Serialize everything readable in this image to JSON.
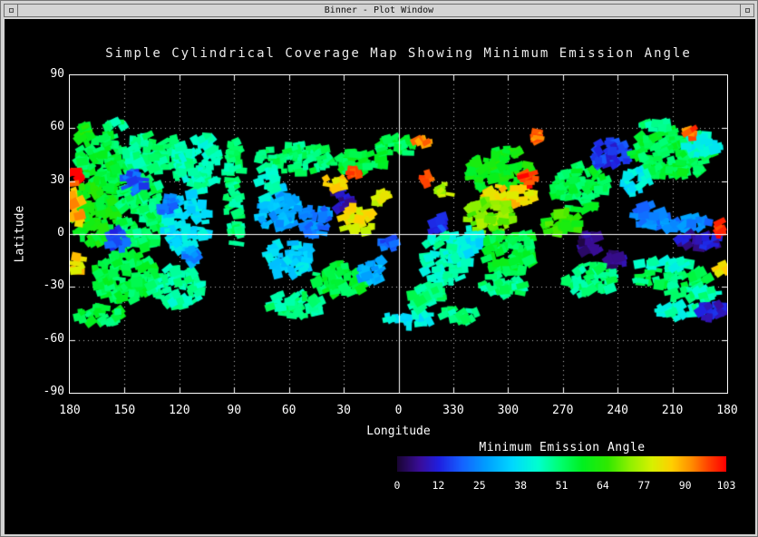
{
  "window": {
    "title": "Binner - Plot Window"
  },
  "plot": {
    "title": "Simple Cylindrical Coverage Map Showing Minimum Emission Angle",
    "xlabel": "Longitude",
    "ylabel": "Latitude",
    "x_ticks": [
      {
        "label": "180",
        "deg": 0
      },
      {
        "label": "150",
        "deg": 30
      },
      {
        "label": "120",
        "deg": 60
      },
      {
        "label": "90",
        "deg": 90
      },
      {
        "label": "60",
        "deg": 120
      },
      {
        "label": "30",
        "deg": 150
      },
      {
        "label": "0",
        "deg": 180
      },
      {
        "label": "330",
        "deg": 210
      },
      {
        "label": "300",
        "deg": 240
      },
      {
        "label": "270",
        "deg": 270
      },
      {
        "label": "240",
        "deg": 300
      },
      {
        "label": "210",
        "deg": 330
      },
      {
        "label": "180",
        "deg": 360
      }
    ],
    "y_ticks": [
      {
        "label": "90",
        "lat": 90
      },
      {
        "label": "60",
        "lat": 60
      },
      {
        "label": "30",
        "lat": 30
      },
      {
        "label": "0",
        "lat": 0
      },
      {
        "label": "-30",
        "lat": -30
      },
      {
        "label": "-60",
        "lat": -60
      },
      {
        "label": "-90",
        "lat": -90
      }
    ]
  },
  "colorbar": {
    "title": "Minimum Emission Angle",
    "ticks": [
      "0",
      "12",
      "25",
      "38",
      "51",
      "64",
      "77",
      "90",
      "103"
    ]
  },
  "chart_data": {
    "type": "heatmap",
    "title": "Simple Cylindrical Coverage Map Showing Minimum Emission Angle",
    "xlabel": "Longitude",
    "ylabel": "Latitude",
    "x_axis_note": "west longitude, wraps 180 -> 0 -> 330 -> 180 left to right",
    "x_tick_values": [
      180,
      150,
      120,
      90,
      60,
      30,
      0,
      330,
      300,
      270,
      240,
      210,
      180
    ],
    "y_tick_values": [
      90,
      60,
      30,
      0,
      -30,
      -60,
      -90
    ],
    "ylim": [
      -90,
      90
    ],
    "grid": "dotted every 30 degrees, solid at lat 0 and lon 0",
    "value_label": "Minimum Emission Angle",
    "value_ticks": [
      0,
      12,
      25,
      38,
      51,
      64,
      77,
      90,
      103
    ],
    "value_range": [
      0,
      103
    ],
    "background": "#000000",
    "palette": [
      [
        0,
        "#1a0533"
      ],
      [
        7,
        "#3a0d99"
      ],
      [
        13,
        "#1f1fe0"
      ],
      [
        20,
        "#1560ff"
      ],
      [
        28,
        "#00a0ff"
      ],
      [
        36,
        "#00d8ff"
      ],
      [
        44,
        "#00ffd0"
      ],
      [
        51,
        "#00ff70"
      ],
      [
        58,
        "#00f020"
      ],
      [
        66,
        "#30e800"
      ],
      [
        73,
        "#90f000"
      ],
      [
        80,
        "#d8f000"
      ],
      [
        86,
        "#ffd000"
      ],
      [
        92,
        "#ff9000"
      ],
      [
        97,
        "#ff4800"
      ],
      [
        103,
        "#ff0000"
      ]
    ],
    "coverage_blobs": [
      {
        "lon": 160,
        "lat": 42,
        "w": 32,
        "h": 28,
        "v": 55
      },
      {
        "lon": 134,
        "lat": 46,
        "w": 34,
        "h": 22,
        "v": 50
      },
      {
        "lon": 110,
        "lat": 40,
        "w": 26,
        "h": 32,
        "v": 46
      },
      {
        "lon": 166,
        "lat": 12,
        "w": 26,
        "h": 38,
        "v": 60
      },
      {
        "lon": 140,
        "lat": 12,
        "w": 30,
        "h": 40,
        "v": 52
      },
      {
        "lon": 116,
        "lat": 6,
        "w": 24,
        "h": 34,
        "v": 38
      },
      {
        "lon": 150,
        "lat": -24,
        "w": 36,
        "h": 28,
        "v": 55
      },
      {
        "lon": 122,
        "lat": -30,
        "w": 28,
        "h": 24,
        "v": 47
      },
      {
        "lon": 144,
        "lat": 30,
        "w": 12,
        "h": 14,
        "v": 20
      },
      {
        "lon": 126,
        "lat": 16,
        "w": 10,
        "h": 12,
        "v": 22
      },
      {
        "lon": 154,
        "lat": -4,
        "w": 10,
        "h": 14,
        "v": 18
      },
      {
        "lon": 112,
        "lat": -14,
        "w": 12,
        "h": 12,
        "v": 26
      },
      {
        "lon": 176,
        "lat": 16,
        "w": 9,
        "h": 20,
        "v": 88
      },
      {
        "lon": 176,
        "lat": -18,
        "w": 7,
        "h": 12,
        "v": 84
      },
      {
        "lon": 177,
        "lat": 32,
        "w": 5,
        "h": 8,
        "v": 100
      },
      {
        "lon": 164,
        "lat": -46,
        "w": 26,
        "h": 10,
        "v": 54
      },
      {
        "lon": 156,
        "lat": 62,
        "w": 12,
        "h": 6,
        "v": 50
      },
      {
        "lon": 172,
        "lat": 57,
        "w": 7,
        "h": 8,
        "v": 60
      },
      {
        "lon": 90,
        "lat": 22,
        "w": 9,
        "h": 66,
        "v": 50
      },
      {
        "lon": 56,
        "lat": 43,
        "w": 42,
        "h": 16,
        "v": 52
      },
      {
        "lon": 22,
        "lat": 41,
        "w": 28,
        "h": 14,
        "v": 56
      },
      {
        "lon": 66,
        "lat": 14,
        "w": 22,
        "h": 26,
        "v": 30
      },
      {
        "lon": 46,
        "lat": 8,
        "w": 16,
        "h": 20,
        "v": 24
      },
      {
        "lon": 30,
        "lat": 20,
        "w": 12,
        "h": 14,
        "v": 8
      },
      {
        "lon": 34,
        "lat": 29,
        "w": 14,
        "h": 9,
        "v": 85
      },
      {
        "lon": 24,
        "lat": 34,
        "w": 6,
        "h": 6,
        "v": 100
      },
      {
        "lon": 22,
        "lat": 8,
        "w": 18,
        "h": 16,
        "v": 82
      },
      {
        "lon": 60,
        "lat": -14,
        "w": 26,
        "h": 20,
        "v": 36
      },
      {
        "lon": 32,
        "lat": -26,
        "w": 30,
        "h": 18,
        "v": 55
      },
      {
        "lon": 56,
        "lat": -40,
        "w": 30,
        "h": 14,
        "v": 50
      },
      {
        "lon": 72,
        "lat": 30,
        "w": 10,
        "h": 20,
        "v": 45
      },
      {
        "lon": 15,
        "lat": -20,
        "w": 14,
        "h": 16,
        "v": 30
      },
      {
        "lon": 2,
        "lat": 50,
        "w": 22,
        "h": 11,
        "v": 55
      },
      {
        "lon": 9,
        "lat": 21,
        "w": 9,
        "h": 10,
        "v": 80
      },
      {
        "lon": 4,
        "lat": -6,
        "w": 10,
        "h": 10,
        "v": 20
      },
      {
        "lon": 354,
        "lat": -48,
        "w": 26,
        "h": 9,
        "v": 40
      },
      {
        "lon": 344,
        "lat": 31,
        "w": 8,
        "h": 8,
        "v": 95
      },
      {
        "lon": 335,
        "lat": 25,
        "w": 10,
        "h": 8,
        "v": 75
      },
      {
        "lon": 347,
        "lat": 52,
        "w": 7,
        "h": 6,
        "v": 92
      },
      {
        "lon": 334,
        "lat": -14,
        "w": 26,
        "h": 30,
        "v": 45
      },
      {
        "lon": 344,
        "lat": -36,
        "w": 20,
        "h": 14,
        "v": 50
      },
      {
        "lon": 340,
        "lat": 6,
        "w": 12,
        "h": 10,
        "v": 15
      },
      {
        "lon": 326,
        "lat": -46,
        "w": 20,
        "h": 9,
        "v": 50
      },
      {
        "lon": 304,
        "lat": 36,
        "w": 36,
        "h": 24,
        "v": 60
      },
      {
        "lon": 300,
        "lat": 22,
        "w": 30,
        "h": 12,
        "v": 85
      },
      {
        "lon": 288,
        "lat": 31,
        "w": 10,
        "h": 8,
        "v": 98
      },
      {
        "lon": 310,
        "lat": 10,
        "w": 26,
        "h": 20,
        "v": 72
      },
      {
        "lon": 300,
        "lat": -10,
        "w": 30,
        "h": 26,
        "v": 55
      },
      {
        "lon": 304,
        "lat": -30,
        "w": 26,
        "h": 14,
        "v": 50
      },
      {
        "lon": 320,
        "lat": -4,
        "w": 12,
        "h": 16,
        "v": 38
      },
      {
        "lon": 285,
        "lat": 55,
        "w": 6,
        "h": 5,
        "v": 95
      },
      {
        "lon": 260,
        "lat": 26,
        "w": 30,
        "h": 26,
        "v": 55
      },
      {
        "lon": 244,
        "lat": 46,
        "w": 26,
        "h": 14,
        "v": 15
      },
      {
        "lon": 254,
        "lat": -5,
        "w": 15,
        "h": 12,
        "v": 5
      },
      {
        "lon": 240,
        "lat": -15,
        "w": 12,
        "h": 10,
        "v": 8
      },
      {
        "lon": 254,
        "lat": -26,
        "w": 30,
        "h": 18,
        "v": 50
      },
      {
        "lon": 270,
        "lat": 6,
        "w": 20,
        "h": 14,
        "v": 65
      },
      {
        "lon": 210,
        "lat": 46,
        "w": 46,
        "h": 28,
        "v": 55
      },
      {
        "lon": 194,
        "lat": 51,
        "w": 20,
        "h": 14,
        "v": 42
      },
      {
        "lon": 220,
        "lat": 61,
        "w": 16,
        "h": 7,
        "v": 50
      },
      {
        "lon": 230,
        "lat": 30,
        "w": 16,
        "h": 14,
        "v": 40
      },
      {
        "lon": 210,
        "lat": 6,
        "w": 40,
        "h": 10,
        "v": 25
      },
      {
        "lon": 195,
        "lat": -4,
        "w": 26,
        "h": 8,
        "v": 10
      },
      {
        "lon": 224,
        "lat": 13,
        "w": 20,
        "h": 8,
        "v": 22
      },
      {
        "lon": 210,
        "lat": -25,
        "w": 40,
        "h": 10,
        "v": 52
      },
      {
        "lon": 200,
        "lat": -34,
        "w": 30,
        "h": 8,
        "v": 48
      },
      {
        "lon": 215,
        "lat": -17,
        "w": 34,
        "h": 6,
        "v": 45
      },
      {
        "lon": 207,
        "lat": -44,
        "w": 26,
        "h": 8,
        "v": 45
      },
      {
        "lon": 184,
        "lat": 4,
        "w": 6,
        "h": 11,
        "v": 100
      },
      {
        "lon": 183,
        "lat": -20,
        "w": 5,
        "h": 8,
        "v": 85
      },
      {
        "lon": 190,
        "lat": -43,
        "w": 16,
        "h": 10,
        "v": 12
      },
      {
        "lon": 199,
        "lat": 58,
        "w": 6,
        "h": 5,
        "v": 95
      }
    ]
  }
}
